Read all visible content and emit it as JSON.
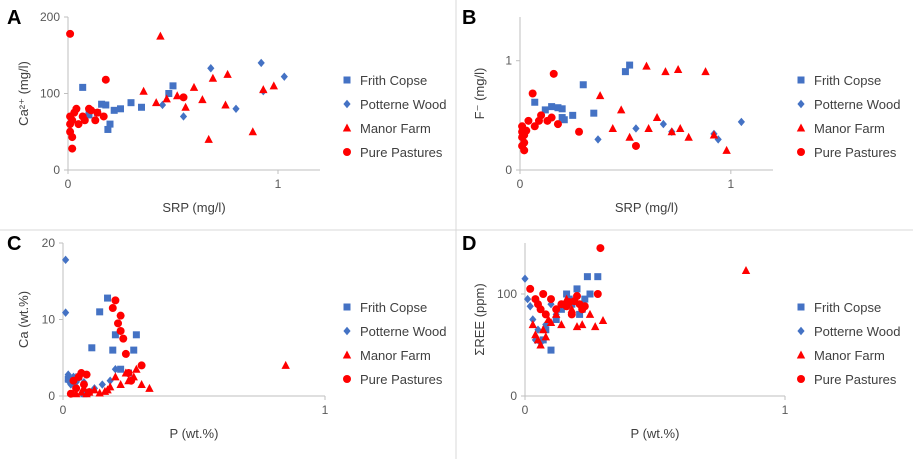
{
  "colors": {
    "blue": "#4472C4",
    "red": "#FF0000",
    "axis": "#BFBFBF",
    "divider": "#D9D9D9"
  },
  "chart_data": [
    {
      "type": "scatter",
      "panel": "A",
      "xlabel": "SRP (mg/l)",
      "ylabel": "Ca²⁺ (mg/l)",
      "xlim": [
        0,
        1.2
      ],
      "ylim": [
        0,
        200
      ],
      "xticks": [
        0,
        1
      ],
      "yticks": [
        0,
        100,
        200
      ],
      "xtick_labels": [
        "0",
        "1"
      ],
      "ytick_labels": [
        "0",
        "100",
        "200"
      ],
      "legend": [
        "Frith Copse",
        "Potterne Wood",
        "Manor Farm",
        "Pure Pastures"
      ],
      "series": [
        {
          "name": "Frith Copse",
          "marker": "square",
          "color": "#4472C4",
          "x": [
            0.07,
            0.1,
            0.14,
            0.16,
            0.18,
            0.2,
            0.19,
            0.22,
            0.25,
            0.3,
            0.35,
            0.48,
            0.5
          ],
          "y": [
            108,
            72,
            75,
            86,
            85,
            60,
            53,
            78,
            80,
            88,
            82,
            100,
            110
          ]
        },
        {
          "name": "Potterne Wood",
          "marker": "diamond",
          "color": "#4472C4",
          "x": [
            0.45,
            0.55,
            0.68,
            0.8,
            0.92,
            0.93,
            1.03
          ],
          "y": [
            85,
            70,
            133,
            80,
            140,
            103,
            122
          ]
        },
        {
          "name": "Manor Farm",
          "marker": "triangle",
          "color": "#FF0000",
          "x": [
            0.36,
            0.42,
            0.44,
            0.47,
            0.52,
            0.56,
            0.6,
            0.64,
            0.67,
            0.69,
            0.75,
            0.76,
            0.88,
            0.93,
            0.98
          ],
          "y": [
            103,
            88,
            175,
            93,
            97,
            82,
            108,
            92,
            40,
            120,
            85,
            125,
            50,
            105,
            110
          ]
        },
        {
          "name": "Pure Pastures",
          "marker": "circle",
          "color": "#FF0000",
          "x": [
            0.01,
            0.01,
            0.01,
            0.01,
            0.02,
            0.02,
            0.02,
            0.03,
            0.04,
            0.05,
            0.07,
            0.08,
            0.1,
            0.11,
            0.13,
            0.14,
            0.17,
            0.18,
            0.55
          ],
          "y": [
            178,
            70,
            60,
            50,
            43,
            28,
            65,
            75,
            80,
            60,
            70,
            65,
            80,
            78,
            65,
            75,
            70,
            118,
            95
          ]
        }
      ]
    },
    {
      "type": "scatter",
      "panel": "B",
      "xlabel": "SRP (mg/l)",
      "ylabel": "F⁻ (mg/l)",
      "xlim": [
        0,
        1.2
      ],
      "ylim": [
        0,
        1.4
      ],
      "xticks": [
        0,
        1
      ],
      "yticks": [
        0,
        1
      ],
      "xtick_labels": [
        "0",
        "1"
      ],
      "ytick_labels": [
        "0",
        "1"
      ],
      "legend": [
        "Frith Copse",
        "Potterne Wood",
        "Manor Farm",
        "Pure Pastures"
      ],
      "series": [
        {
          "name": "Frith Copse",
          "marker": "square",
          "color": "#4472C4",
          "x": [
            0.07,
            0.12,
            0.15,
            0.18,
            0.2,
            0.2,
            0.21,
            0.25,
            0.3,
            0.35,
            0.5,
            0.52
          ],
          "y": [
            0.62,
            0.55,
            0.58,
            0.57,
            0.56,
            0.48,
            0.46,
            0.5,
            0.78,
            0.52,
            0.9,
            0.96
          ]
        },
        {
          "name": "Potterne Wood",
          "marker": "diamond",
          "color": "#4472C4",
          "x": [
            0.37,
            0.55,
            0.68,
            0.72,
            0.92,
            0.94,
            1.05
          ],
          "y": [
            0.28,
            0.38,
            0.42,
            0.35,
            0.33,
            0.28,
            0.44
          ]
        },
        {
          "name": "Manor Farm",
          "marker": "triangle",
          "color": "#FF0000",
          "x": [
            0.38,
            0.44,
            0.48,
            0.52,
            0.6,
            0.61,
            0.65,
            0.69,
            0.72,
            0.75,
            0.76,
            0.8,
            0.88,
            0.92,
            0.98
          ],
          "y": [
            0.68,
            0.38,
            0.55,
            0.3,
            0.95,
            0.38,
            0.48,
            0.9,
            0.35,
            0.92,
            0.38,
            0.3,
            0.9,
            0.32,
            0.18
          ]
        },
        {
          "name": "Pure Pastures",
          "marker": "circle",
          "color": "#FF0000",
          "x": [
            0.01,
            0.01,
            0.01,
            0.01,
            0.02,
            0.02,
            0.02,
            0.03,
            0.04,
            0.06,
            0.07,
            0.09,
            0.1,
            0.13,
            0.15,
            0.16,
            0.18,
            0.28,
            0.55
          ],
          "y": [
            0.4,
            0.35,
            0.3,
            0.22,
            0.18,
            0.25,
            0.32,
            0.36,
            0.45,
            0.7,
            0.4,
            0.45,
            0.5,
            0.45,
            0.48,
            0.88,
            0.42,
            0.35,
            0.22
          ]
        }
      ]
    },
    {
      "type": "scatter",
      "panel": "C",
      "xlabel": "P (wt.%)",
      "ylabel": "Ca (wt.%)",
      "xlim": [
        0,
        1
      ],
      "ylim": [
        0,
        20
      ],
      "xticks": [
        0,
        1
      ],
      "yticks": [
        0,
        10,
        20
      ],
      "xtick_labels": [
        "0",
        "1"
      ],
      "ytick_labels": [
        "0",
        "10",
        "20"
      ],
      "legend": [
        "Frith Copse",
        "Potterne Wood",
        "Manor Farm",
        "Pure Pastures"
      ],
      "series": [
        {
          "name": "Frith Copse",
          "marker": "square",
          "color": "#4472C4",
          "x": [
            0.02,
            0.04,
            0.06,
            0.08,
            0.11,
            0.14,
            0.17,
            0.19,
            0.2,
            0.22,
            0.25,
            0.27,
            0.28
          ],
          "y": [
            2.2,
            1.8,
            2.5,
            0.3,
            6.3,
            11,
            12.8,
            6,
            8,
            3.5,
            3,
            6,
            8
          ]
        },
        {
          "name": "Potterne Wood",
          "marker": "diamond",
          "color": "#4472C4",
          "x": [
            0.01,
            0.01,
            0.02,
            0.02,
            0.03,
            0.04,
            0.05,
            0.06,
            0.08,
            0.1,
            0.12,
            0.15,
            0.18,
            0.2
          ],
          "y": [
            17.8,
            10.9,
            2.8,
            2,
            1.5,
            2.5,
            1.8,
            2.3,
            1.8,
            0.5,
            1,
            1.5,
            2,
            3.5
          ]
        },
        {
          "name": "Manor Farm",
          "marker": "triangle",
          "color": "#FF0000",
          "x": [
            0.05,
            0.07,
            0.08,
            0.09,
            0.1,
            0.12,
            0.14,
            0.16,
            0.17,
            0.18,
            0.2,
            0.22,
            0.24,
            0.25,
            0.27,
            0.28,
            0.3,
            0.33,
            0.85
          ],
          "y": [
            0.3,
            0.5,
            1,
            0.3,
            0.5,
            0.8,
            0.4,
            0.6,
            0.8,
            1.2,
            2.5,
            1.5,
            3,
            2,
            2.5,
            3.5,
            1.5,
            1,
            4
          ]
        },
        {
          "name": "Pure Pastures",
          "marker": "circle",
          "color": "#FF0000",
          "x": [
            0.03,
            0.04,
            0.05,
            0.06,
            0.07,
            0.08,
            0.09,
            0.1,
            0.19,
            0.2,
            0.21,
            0.22,
            0.22,
            0.23,
            0.24,
            0.25,
            0.26,
            0.3
          ],
          "y": [
            0.3,
            2,
            1,
            2.5,
            3,
            1.5,
            2.8,
            0.5,
            11.5,
            12.5,
            9.5,
            10.5,
            8.5,
            7.5,
            5.5,
            3,
            2,
            4
          ]
        }
      ]
    },
    {
      "type": "scatter",
      "panel": "D",
      "xlabel": "P (wt.%)",
      "ylabel": "ΣREE (ppm)",
      "xlim": [
        0,
        1
      ],
      "ylim": [
        0,
        150
      ],
      "xticks": [
        0,
        1
      ],
      "yticks": [
        0,
        100
      ],
      "xtick_labels": [
        "0",
        "1"
      ],
      "ytick_labels": [
        "0",
        "100"
      ],
      "legend": [
        "Frith Copse",
        "Potterne Wood",
        "Manor Farm",
        "Pure Pastures"
      ],
      "series": [
        {
          "name": "Frith Copse",
          "marker": "square",
          "color": "#4472C4",
          "x": [
            0.07,
            0.08,
            0.1,
            0.12,
            0.14,
            0.16,
            0.17,
            0.18,
            0.2,
            0.21,
            0.22,
            0.23,
            0.24,
            0.25,
            0.28
          ],
          "y": [
            55,
            65,
            45,
            75,
            85,
            100,
            95,
            90,
            105,
            80,
            85,
            95,
            117,
            100,
            117
          ]
        },
        {
          "name": "Potterne Wood",
          "marker": "diamond",
          "color": "#4472C4",
          "x": [
            0.0,
            0.01,
            0.02,
            0.03,
            0.04,
            0.05,
            0.06,
            0.08,
            0.1,
            0.12
          ],
          "y": [
            115,
            95,
            88,
            75,
            55,
            65,
            52,
            70,
            90,
            80
          ]
        },
        {
          "name": "Manor Farm",
          "marker": "triangle",
          "color": "#FF0000",
          "x": [
            0.03,
            0.04,
            0.05,
            0.06,
            0.07,
            0.08,
            0.09,
            0.1,
            0.12,
            0.14,
            0.16,
            0.18,
            0.2,
            0.22,
            0.25,
            0.27,
            0.3,
            0.85
          ],
          "y": [
            70,
            60,
            55,
            50,
            65,
            58,
            75,
            72,
            80,
            70,
            95,
            85,
            68,
            70,
            80,
            68,
            74,
            123
          ]
        },
        {
          "name": "Pure Pastures",
          "marker": "circle",
          "color": "#FF0000",
          "x": [
            0.02,
            0.04,
            0.05,
            0.06,
            0.07,
            0.08,
            0.1,
            0.12,
            0.14,
            0.16,
            0.17,
            0.18,
            0.19,
            0.2,
            0.21,
            0.22,
            0.23,
            0.28,
            0.29
          ],
          "y": [
            105,
            95,
            90,
            85,
            100,
            80,
            95,
            85,
            90,
            88,
            92,
            80,
            93,
            98,
            90,
            85,
            88,
            100,
            145
          ]
        }
      ]
    }
  ]
}
